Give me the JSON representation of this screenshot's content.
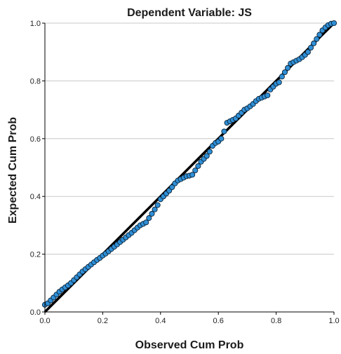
{
  "chart_data": {
    "type": "scatter",
    "title": "Dependent Variable: JS",
    "xlabel": "Observed Cum Prob",
    "ylabel": "Expected Cum Prob",
    "xlim": [
      0,
      1
    ],
    "ylim": [
      0,
      1
    ],
    "x_ticks": [
      "0.0",
      "0.2",
      "0.4",
      "0.6",
      "0.8",
      "1.0"
    ],
    "y_ticks": [
      "0.0",
      "0.2",
      "0.4",
      "0.6",
      "0.8",
      "1.0"
    ],
    "grid": "horizontal",
    "reference_line": [
      [
        0,
        0
      ],
      [
        1,
        1
      ]
    ],
    "colors": {
      "point_fill": "#2f8fd6",
      "point_stroke": "#0c2236",
      "reference_line": "#000000",
      "grid": "#c8c8c8",
      "axis": "#000000"
    },
    "series": [
      {
        "points": [
          [
            0.0,
            0.025
          ],
          [
            0.01,
            0.03
          ],
          [
            0.02,
            0.04
          ],
          [
            0.03,
            0.05
          ],
          [
            0.04,
            0.06
          ],
          [
            0.05,
            0.07
          ],
          [
            0.06,
            0.078
          ],
          [
            0.07,
            0.085
          ],
          [
            0.08,
            0.092
          ],
          [
            0.09,
            0.1
          ],
          [
            0.1,
            0.11
          ],
          [
            0.11,
            0.12
          ],
          [
            0.12,
            0.13
          ],
          [
            0.13,
            0.14
          ],
          [
            0.14,
            0.148
          ],
          [
            0.15,
            0.156
          ],
          [
            0.16,
            0.164
          ],
          [
            0.17,
            0.172
          ],
          [
            0.18,
            0.18
          ],
          [
            0.19,
            0.187
          ],
          [
            0.2,
            0.195
          ],
          [
            0.21,
            0.202
          ],
          [
            0.22,
            0.21
          ],
          [
            0.23,
            0.218
          ],
          [
            0.24,
            0.226
          ],
          [
            0.25,
            0.234
          ],
          [
            0.26,
            0.242
          ],
          [
            0.27,
            0.25
          ],
          [
            0.28,
            0.258
          ],
          [
            0.29,
            0.266
          ],
          [
            0.3,
            0.274
          ],
          [
            0.31,
            0.283
          ],
          [
            0.32,
            0.292
          ],
          [
            0.33,
            0.3
          ],
          [
            0.34,
            0.305
          ],
          [
            0.35,
            0.31
          ],
          [
            0.36,
            0.325
          ],
          [
            0.37,
            0.34
          ],
          [
            0.38,
            0.355
          ],
          [
            0.39,
            0.37
          ],
          [
            0.4,
            0.39
          ],
          [
            0.41,
            0.4
          ],
          [
            0.42,
            0.41
          ],
          [
            0.43,
            0.42
          ],
          [
            0.44,
            0.432
          ],
          [
            0.45,
            0.445
          ],
          [
            0.46,
            0.455
          ],
          [
            0.47,
            0.46
          ],
          [
            0.48,
            0.465
          ],
          [
            0.49,
            0.47
          ],
          [
            0.5,
            0.472
          ],
          [
            0.51,
            0.475
          ],
          [
            0.52,
            0.49
          ],
          [
            0.53,
            0.505
          ],
          [
            0.54,
            0.52
          ],
          [
            0.55,
            0.53
          ],
          [
            0.56,
            0.54
          ],
          [
            0.57,
            0.555
          ],
          [
            0.58,
            0.575
          ],
          [
            0.59,
            0.585
          ],
          [
            0.6,
            0.59
          ],
          [
            0.61,
            0.6
          ],
          [
            0.62,
            0.625
          ],
          [
            0.63,
            0.655
          ],
          [
            0.64,
            0.66
          ],
          [
            0.65,
            0.665
          ],
          [
            0.66,
            0.67
          ],
          [
            0.67,
            0.68
          ],
          [
            0.68,
            0.69
          ],
          [
            0.69,
            0.7
          ],
          [
            0.7,
            0.705
          ],
          [
            0.71,
            0.712
          ],
          [
            0.72,
            0.72
          ],
          [
            0.73,
            0.73
          ],
          [
            0.74,
            0.738
          ],
          [
            0.75,
            0.742
          ],
          [
            0.76,
            0.746
          ],
          [
            0.77,
            0.75
          ],
          [
            0.78,
            0.77
          ],
          [
            0.79,
            0.78
          ],
          [
            0.8,
            0.79
          ],
          [
            0.81,
            0.795
          ],
          [
            0.82,
            0.815
          ],
          [
            0.83,
            0.83
          ],
          [
            0.84,
            0.845
          ],
          [
            0.85,
            0.86
          ],
          [
            0.86,
            0.865
          ],
          [
            0.87,
            0.87
          ],
          [
            0.88,
            0.875
          ],
          [
            0.89,
            0.882
          ],
          [
            0.9,
            0.89
          ],
          [
            0.91,
            0.9
          ],
          [
            0.92,
            0.915
          ],
          [
            0.93,
            0.93
          ],
          [
            0.94,
            0.945
          ],
          [
            0.95,
            0.96
          ],
          [
            0.96,
            0.975
          ],
          [
            0.97,
            0.985
          ],
          [
            0.98,
            0.993
          ],
          [
            0.99,
            0.998
          ],
          [
            1.0,
            1.0
          ]
        ]
      }
    ]
  }
}
